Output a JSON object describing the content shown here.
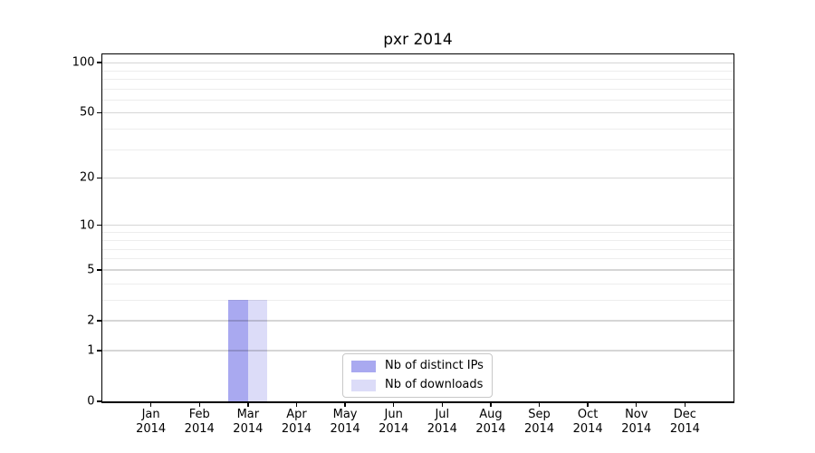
{
  "chart_data": {
    "type": "bar",
    "title": "pxr 2014",
    "categories": [
      "Jan",
      "Feb",
      "Mar",
      "Apr",
      "May",
      "Jun",
      "Jul",
      "Aug",
      "Sep",
      "Oct",
      "Nov",
      "Dec"
    ],
    "category_year": "2014",
    "series": [
      {
        "name": "Nb of distinct IPs",
        "color": "#a9a9f0",
        "values": [
          0,
          0,
          3,
          0,
          0,
          0,
          0,
          0,
          0,
          0,
          0,
          0
        ]
      },
      {
        "name": "Nb of downloads",
        "color": "#dcdcf8",
        "values": [
          0,
          0,
          3,
          0,
          0,
          0,
          0,
          0,
          0,
          0,
          0,
          0
        ]
      }
    ],
    "y_scale": "log1p",
    "y_ticks": [
      0,
      1,
      2,
      5,
      10,
      20,
      50,
      100
    ],
    "y_minor_gridlines": [
      3,
      4,
      6,
      7,
      8,
      9,
      30,
      40,
      60,
      70,
      80,
      90
    ],
    "ylim": [
      0,
      112
    ],
    "xlabel": "",
    "ylabel": "",
    "grid": "horizontal-above-bars",
    "legend_position": "lower-center",
    "axis_color": "#000000",
    "major_grid_color": "rgba(0,0,0,0.16)",
    "minor_grid_color": "rgba(0,0,0,0.07)",
    "background_color": "#ffffff"
  }
}
